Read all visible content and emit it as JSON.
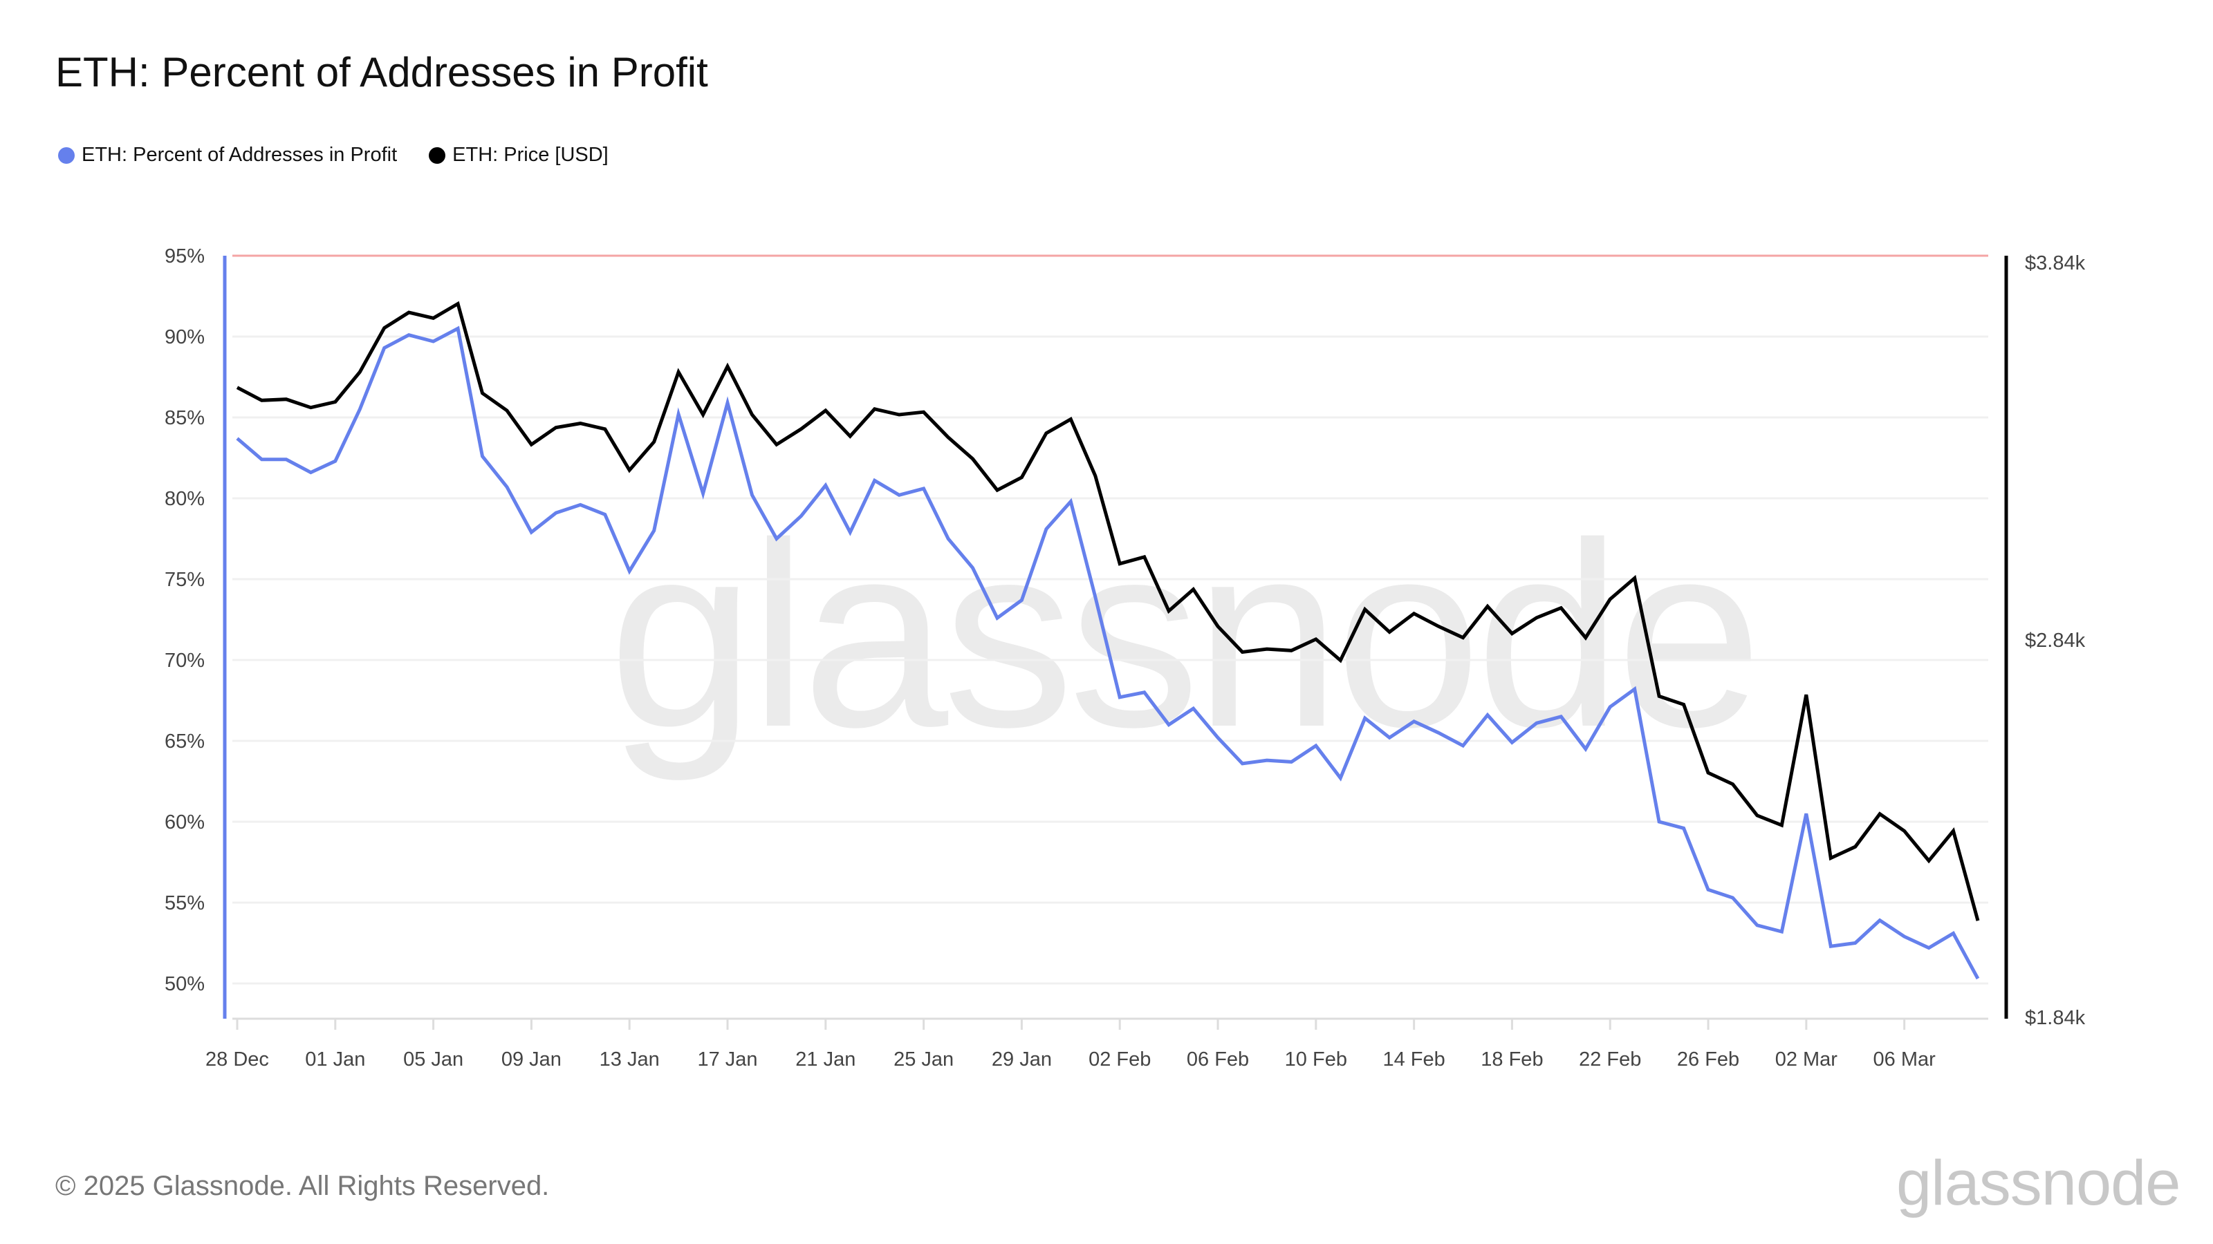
{
  "title": "ETH: Percent of Addresses in Profit",
  "footer": "© 2025 Glassnode. All Rights Reserved.",
  "logo": "glassnode",
  "watermark": "glassnode",
  "chart_data": {
    "type": "line",
    "title": "ETH: Percent of Addresses in Profit",
    "legend_position": "top-left",
    "grid": true,
    "x": [
      "28 Dec",
      "29 Dec",
      "30 Dec",
      "31 Dec",
      "01 Jan",
      "02 Jan",
      "03 Jan",
      "04 Jan",
      "05 Jan",
      "06 Jan",
      "07 Jan",
      "08 Jan",
      "09 Jan",
      "10 Jan",
      "11 Jan",
      "12 Jan",
      "13 Jan",
      "14 Jan",
      "15 Jan",
      "16 Jan",
      "17 Jan",
      "18 Jan",
      "19 Jan",
      "20 Jan",
      "21 Jan",
      "22 Jan",
      "23 Jan",
      "24 Jan",
      "25 Jan",
      "26 Jan",
      "27 Jan",
      "28 Jan",
      "29 Jan",
      "30 Jan",
      "31 Jan",
      "01 Feb",
      "02 Feb",
      "03 Feb",
      "04 Feb",
      "05 Feb",
      "06 Feb",
      "07 Feb",
      "08 Feb",
      "09 Feb",
      "10 Feb",
      "11 Feb",
      "12 Feb",
      "13 Feb",
      "14 Feb",
      "15 Feb",
      "16 Feb",
      "17 Feb",
      "18 Feb",
      "19 Feb",
      "20 Feb",
      "21 Feb",
      "22 Feb",
      "23 Feb",
      "24 Feb",
      "25 Feb",
      "26 Feb",
      "27 Feb",
      "28 Feb",
      "01 Mar",
      "02 Mar",
      "03 Mar",
      "04 Mar",
      "05 Mar",
      "06 Mar",
      "07 Mar",
      "08 Mar",
      "09 Mar"
    ],
    "x_tick_labels": [
      "28 Dec",
      "01 Jan",
      "05 Jan",
      "09 Jan",
      "13 Jan",
      "17 Jan",
      "21 Jan",
      "25 Jan",
      "29 Jan",
      "02 Feb",
      "06 Feb",
      "10 Feb",
      "14 Feb",
      "18 Feb",
      "22 Feb",
      "26 Feb",
      "02 Mar",
      "06 Mar"
    ],
    "y_left": {
      "ticks": [
        "50%",
        "55%",
        "60%",
        "65%",
        "70%",
        "75%",
        "80%",
        "85%",
        "90%",
        "95%"
      ],
      "range": [
        48,
        95
      ]
    },
    "y_right": {
      "ticks": [
        "$1.84k",
        "$2.84k",
        "$3.84k"
      ],
      "range": [
        1840,
        3840
      ]
    },
    "reference_line": {
      "value": 95,
      "color": "#f4a5a5"
    },
    "series": [
      {
        "name": "ETH: Percent of Addresses in Profit",
        "axis": "left",
        "color": "#6580ec",
        "values": [
          83.7,
          82.4,
          82.4,
          81.6,
          82.3,
          85.5,
          89.3,
          90.1,
          89.7,
          90.5,
          82.6,
          80.7,
          77.9,
          79.1,
          79.6,
          79.0,
          75.5,
          78.0,
          85.2,
          80.3,
          85.9,
          80.2,
          77.5,
          78.9,
          80.8,
          77.9,
          81.1,
          80.2,
          80.6,
          77.5,
          75.7,
          72.6,
          73.7,
          78.1,
          79.8,
          73.9,
          67.7,
          68.0,
          66.0,
          67.0,
          65.2,
          63.6,
          63.8,
          63.7,
          64.7,
          62.7,
          66.4,
          65.2,
          66.2,
          65.5,
          64.7,
          66.6,
          64.9,
          66.1,
          66.5,
          64.5,
          67.1,
          68.2,
          60.0,
          59.6,
          55.8,
          55.3,
          53.6,
          53.2,
          60.5,
          52.3,
          52.5,
          53.9,
          52.9,
          52.2,
          53.1,
          50.3
        ]
      },
      {
        "name": "ETH: Price [USD]",
        "axis": "right",
        "color": "#000000",
        "values": [
          3509,
          3475,
          3478,
          3456,
          3471,
          3550,
          3667,
          3708,
          3693,
          3731,
          3494,
          3448,
          3358,
          3403,
          3414,
          3399,
          3290,
          3365,
          3550,
          3437,
          3565,
          3437,
          3358,
          3399,
          3448,
          3380,
          3452,
          3437,
          3444,
          3377,
          3320,
          3237,
          3271,
          3388,
          3425,
          3275,
          3042,
          3060,
          2917,
          2974,
          2876,
          2808,
          2816,
          2812,
          2842,
          2786,
          2921,
          2861,
          2910,
          2876,
          2846,
          2929,
          2857,
          2899,
          2925,
          2846,
          2948,
          3004,
          2691,
          2669,
          2488,
          2458,
          2375,
          2349,
          2695,
          2262,
          2292,
          2379,
          2334,
          2255,
          2334,
          2096
        ]
      }
    ]
  }
}
